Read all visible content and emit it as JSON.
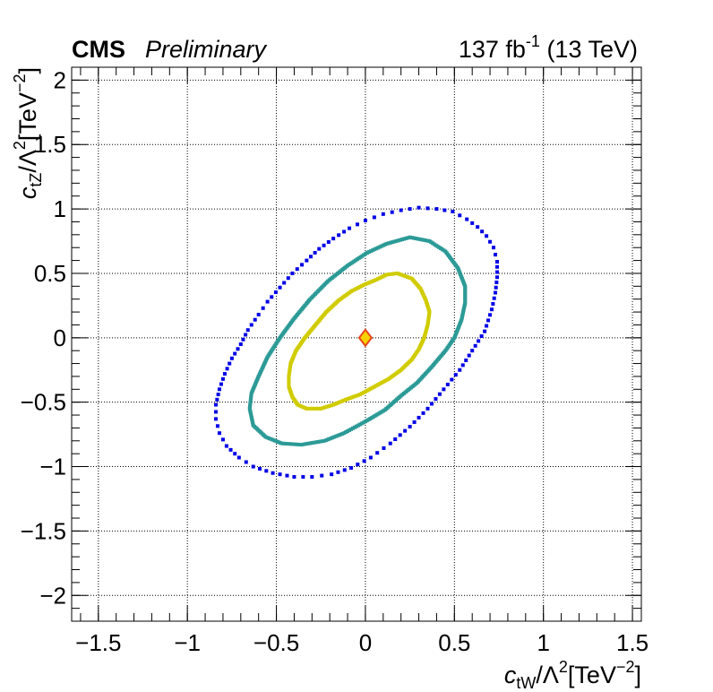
{
  "header": {
    "experiment": "CMS",
    "status": "Preliminary",
    "lumi_prefix": "137 fb",
    "lumi_exp": "-1",
    "energy": " (13 TeV)"
  },
  "axes": {
    "x_label": {
      "base": "c",
      "sub": "tW",
      "mid": "/Λ",
      "sup": "2",
      "unit": "[TeV",
      "unit_sup": "−2",
      "close": "]"
    },
    "y_label": {
      "base": "c",
      "sub": "tZ",
      "mid": "/Λ",
      "sup": "2",
      "unit": "[TeV",
      "unit_sup": "−2",
      "close": "]"
    }
  },
  "chart_data": {
    "type": "scatter",
    "title": "",
    "xlim": [
      -1.65,
      1.55
    ],
    "ylim": [
      -2.2,
      2.1
    ],
    "grid": true,
    "x_ticks": [
      {
        "v": -1.5,
        "label": "−1.5"
      },
      {
        "v": -1,
        "label": "−1"
      },
      {
        "v": -0.5,
        "label": "−0.5"
      },
      {
        "v": 0,
        "label": "0"
      },
      {
        "v": 0.5,
        "label": "0.5"
      },
      {
        "v": 1,
        "label": "1"
      },
      {
        "v": 1.5,
        "label": "1.5"
      }
    ],
    "y_ticks": [
      {
        "v": -2,
        "label": "−2"
      },
      {
        "v": -1.5,
        "label": "−1.5"
      },
      {
        "v": -1,
        "label": "−1"
      },
      {
        "v": -0.5,
        "label": "−0.5"
      },
      {
        "v": 0,
        "label": "0"
      },
      {
        "v": 0.5,
        "label": "0.5"
      },
      {
        "v": 1,
        "label": "1"
      },
      {
        "v": 1.5,
        "label": "1.5"
      },
      {
        "v": 2,
        "label": "2"
      }
    ],
    "best_fit": {
      "x": 0.0,
      "y": 0.0,
      "marker": "diamond",
      "fill": "#f6d100",
      "stroke": "#e8461c"
    },
    "series": [
      {
        "color": "#d0cc00",
        "style": "dense",
        "points": [
          [
            0.18,
            0.5
          ],
          [
            0.26,
            0.46
          ],
          [
            0.31,
            0.38
          ],
          [
            0.34,
            0.29
          ],
          [
            0.36,
            0.2
          ],
          [
            0.35,
            0.1
          ],
          [
            0.33,
            0.0
          ],
          [
            0.3,
            -0.09
          ],
          [
            0.26,
            -0.17
          ],
          [
            0.2,
            -0.25
          ],
          [
            0.13,
            -0.32
          ],
          [
            0.05,
            -0.38
          ],
          [
            -0.03,
            -0.44
          ],
          [
            -0.11,
            -0.48
          ],
          [
            -0.18,
            -0.52
          ],
          [
            -0.25,
            -0.55
          ],
          [
            -0.33,
            -0.55
          ],
          [
            -0.38,
            -0.52
          ],
          [
            -0.41,
            -0.46
          ],
          [
            -0.43,
            -0.38
          ],
          [
            -0.43,
            -0.3
          ],
          [
            -0.42,
            -0.2
          ],
          [
            -0.39,
            -0.1
          ],
          [
            -0.34,
            0.0
          ],
          [
            -0.28,
            0.1
          ],
          [
            -0.22,
            0.2
          ],
          [
            -0.15,
            0.29
          ],
          [
            -0.08,
            0.36
          ],
          [
            -0.01,
            0.41
          ],
          [
            0.06,
            0.45
          ],
          [
            0.12,
            0.49
          ],
          [
            0.18,
            0.5
          ]
        ]
      },
      {
        "color": "#2c9a96",
        "style": "dense",
        "points": [
          [
            0.25,
            0.78
          ],
          [
            0.36,
            0.75
          ],
          [
            0.45,
            0.67
          ],
          [
            0.52,
            0.54
          ],
          [
            0.56,
            0.4
          ],
          [
            0.56,
            0.27
          ],
          [
            0.54,
            0.14
          ],
          [
            0.5,
            0.0
          ],
          [
            0.45,
            -0.1
          ],
          [
            0.37,
            -0.23
          ],
          [
            0.29,
            -0.35
          ],
          [
            0.2,
            -0.45
          ],
          [
            0.11,
            -0.56
          ],
          [
            0.0,
            -0.65
          ],
          [
            -0.12,
            -0.74
          ],
          [
            -0.23,
            -0.8
          ],
          [
            -0.36,
            -0.83
          ],
          [
            -0.47,
            -0.82
          ],
          [
            -0.56,
            -0.77
          ],
          [
            -0.63,
            -0.68
          ],
          [
            -0.65,
            -0.55
          ],
          [
            -0.64,
            -0.43
          ],
          [
            -0.6,
            -0.3
          ],
          [
            -0.55,
            -0.15
          ],
          [
            -0.48,
            0.0
          ],
          [
            -0.4,
            0.15
          ],
          [
            -0.31,
            0.3
          ],
          [
            -0.21,
            0.44
          ],
          [
            -0.1,
            0.56
          ],
          [
            0.01,
            0.66
          ],
          [
            0.12,
            0.73
          ],
          [
            0.25,
            0.78
          ]
        ]
      },
      {
        "color": "#0000e6",
        "style": "sparse",
        "points": [
          [
            -0.3,
            -1.08
          ],
          [
            -0.4,
            -1.08
          ],
          [
            -0.52,
            -1.05
          ],
          [
            -0.63,
            -1.0
          ],
          [
            -0.71,
            -0.93
          ],
          [
            -0.78,
            -0.84
          ],
          [
            -0.82,
            -0.74
          ],
          [
            -0.84,
            -0.63
          ],
          [
            -0.84,
            -0.52
          ],
          [
            -0.82,
            -0.4
          ],
          [
            -0.79,
            -0.28
          ],
          [
            -0.75,
            -0.16
          ],
          [
            -0.7,
            -0.05
          ],
          [
            -0.66,
            0.06
          ],
          [
            -0.6,
            0.18
          ],
          [
            -0.55,
            0.28
          ],
          [
            -0.48,
            0.39
          ],
          [
            -0.41,
            0.5
          ],
          [
            -0.33,
            0.6
          ],
          [
            -0.26,
            0.69
          ],
          [
            -0.18,
            0.77
          ],
          [
            -0.09,
            0.85
          ],
          [
            0.0,
            0.91
          ],
          [
            0.1,
            0.96
          ],
          [
            0.2,
            0.99
          ],
          [
            0.3,
            1.01
          ],
          [
            0.4,
            1.0
          ],
          [
            0.49,
            0.98
          ],
          [
            0.57,
            0.92
          ],
          [
            0.63,
            0.86
          ],
          [
            0.68,
            0.79
          ],
          [
            0.72,
            0.7
          ],
          [
            0.74,
            0.59
          ],
          [
            0.74,
            0.47
          ],
          [
            0.73,
            0.35
          ],
          [
            0.71,
            0.22
          ],
          [
            0.67,
            0.05
          ],
          [
            0.6,
            -0.1
          ],
          [
            0.53,
            -0.25
          ],
          [
            0.44,
            -0.4
          ],
          [
            0.35,
            -0.55
          ],
          [
            0.25,
            -0.69
          ],
          [
            0.14,
            -0.82
          ],
          [
            0.03,
            -0.93
          ],
          [
            -0.08,
            -1.01
          ],
          [
            -0.19,
            -1.06
          ],
          [
            -0.3,
            -1.08
          ]
        ]
      }
    ]
  }
}
